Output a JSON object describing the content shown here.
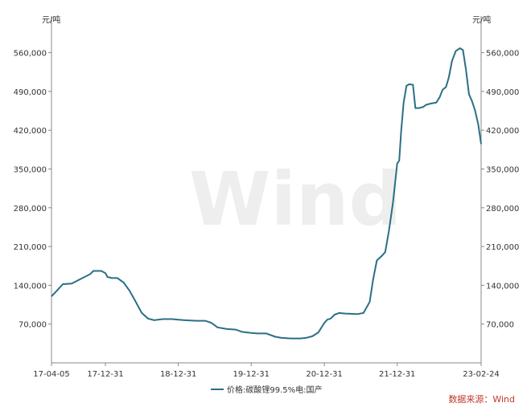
{
  "chart_data": {
    "type": "line",
    "y_unit_left": "元/吨",
    "y_unit_right": "元/吨",
    "ylim": [
      0,
      600000
    ],
    "yticks": [
      70000,
      140000,
      210000,
      280000,
      350000,
      420000,
      490000,
      560000
    ],
    "ytick_labels": [
      "70,000",
      "140,000",
      "210,000",
      "280,000",
      "350,000",
      "420,000",
      "490,000",
      "560,000"
    ],
    "xlim": [
      "2017-04-05",
      "2023-02-24"
    ],
    "xticks": [
      "2017-04-05",
      "2017-12-31",
      "2018-12-31",
      "2019-12-31",
      "2020-12-31",
      "2021-12-31",
      "2023-02-24"
    ],
    "xtick_labels": [
      "17-04-05",
      "17-12-31",
      "18-12-31",
      "19-12-31",
      "20-12-31",
      "21-12-31",
      "23-02-24"
    ],
    "grid": false,
    "legend_position": "bottom",
    "series": [
      {
        "name": "价格:碳酸锂99.5%电:国产",
        "color": "#2b6f85",
        "points": [
          [
            "2017-04-05",
            120000
          ],
          [
            "2017-05-01",
            130000
          ],
          [
            "2017-06-01",
            142000
          ],
          [
            "2017-07-15",
            143000
          ],
          [
            "2017-09-01",
            152000
          ],
          [
            "2017-10-15",
            160000
          ],
          [
            "2017-11-01",
            166000
          ],
          [
            "2017-12-10",
            166000
          ],
          [
            "2017-12-31",
            162000
          ],
          [
            "2018-01-10",
            155000
          ],
          [
            "2018-02-01",
            153000
          ],
          [
            "2018-03-01",
            153000
          ],
          [
            "2018-04-01",
            145000
          ],
          [
            "2018-05-01",
            130000
          ],
          [
            "2018-06-01",
            110000
          ],
          [
            "2018-07-01",
            90000
          ],
          [
            "2018-08-01",
            80000
          ],
          [
            "2018-09-01",
            77000
          ],
          [
            "2018-10-15",
            79000
          ],
          [
            "2018-12-01",
            79000
          ],
          [
            "2018-12-31",
            78000
          ],
          [
            "2019-02-01",
            77000
          ],
          [
            "2019-04-01",
            76000
          ],
          [
            "2019-05-15",
            76000
          ],
          [
            "2019-06-15",
            72000
          ],
          [
            "2019-07-15",
            64000
          ],
          [
            "2019-09-01",
            61000
          ],
          [
            "2019-10-15",
            60000
          ],
          [
            "2019-11-15",
            56000
          ],
          [
            "2019-12-31",
            54000
          ],
          [
            "2020-02-01",
            53000
          ],
          [
            "2020-03-15",
            53000
          ],
          [
            "2020-05-01",
            47000
          ],
          [
            "2020-06-01",
            45000
          ],
          [
            "2020-07-15",
            44000
          ],
          [
            "2020-09-01",
            44000
          ],
          [
            "2020-10-01",
            45000
          ],
          [
            "2020-11-01",
            48000
          ],
          [
            "2020-12-01",
            55000
          ],
          [
            "2020-12-31",
            72000
          ],
          [
            "2021-01-15",
            78000
          ],
          [
            "2021-02-01",
            80000
          ],
          [
            "2021-02-20",
            87000
          ],
          [
            "2021-03-15",
            90000
          ],
          [
            "2021-04-15",
            89000
          ],
          [
            "2021-06-15",
            88000
          ],
          [
            "2021-07-15",
            90000
          ],
          [
            "2021-08-15",
            110000
          ],
          [
            "2021-09-01",
            150000
          ],
          [
            "2021-09-20",
            185000
          ],
          [
            "2021-10-15",
            193000
          ],
          [
            "2021-11-01",
            200000
          ],
          [
            "2021-11-20",
            240000
          ],
          [
            "2021-12-10",
            290000
          ],
          [
            "2021-12-31",
            360000
          ],
          [
            "2022-01-10",
            365000
          ],
          [
            "2022-01-20",
            420000
          ],
          [
            "2022-02-01",
            470000
          ],
          [
            "2022-02-15",
            500000
          ],
          [
            "2022-03-01",
            503000
          ],
          [
            "2022-03-20",
            502000
          ],
          [
            "2022-04-01",
            460000
          ],
          [
            "2022-04-20",
            460000
          ],
          [
            "2022-05-10",
            462000
          ],
          [
            "2022-05-25",
            466000
          ],
          [
            "2022-06-15",
            468000
          ],
          [
            "2022-07-15",
            470000
          ],
          [
            "2022-08-01",
            480000
          ],
          [
            "2022-08-15",
            493000
          ],
          [
            "2022-09-01",
            498000
          ],
          [
            "2022-09-15",
            515000
          ],
          [
            "2022-10-01",
            545000
          ],
          [
            "2022-10-20",
            563000
          ],
          [
            "2022-11-10",
            568000
          ],
          [
            "2022-11-25",
            565000
          ],
          [
            "2022-12-10",
            530000
          ],
          [
            "2022-12-25",
            485000
          ],
          [
            "2023-01-10",
            472000
          ],
          [
            "2023-01-25",
            455000
          ],
          [
            "2023-02-10",
            430000
          ],
          [
            "2023-02-24",
            395000
          ]
        ]
      }
    ]
  },
  "watermark": "Wind",
  "source": "数据来源：Wind"
}
